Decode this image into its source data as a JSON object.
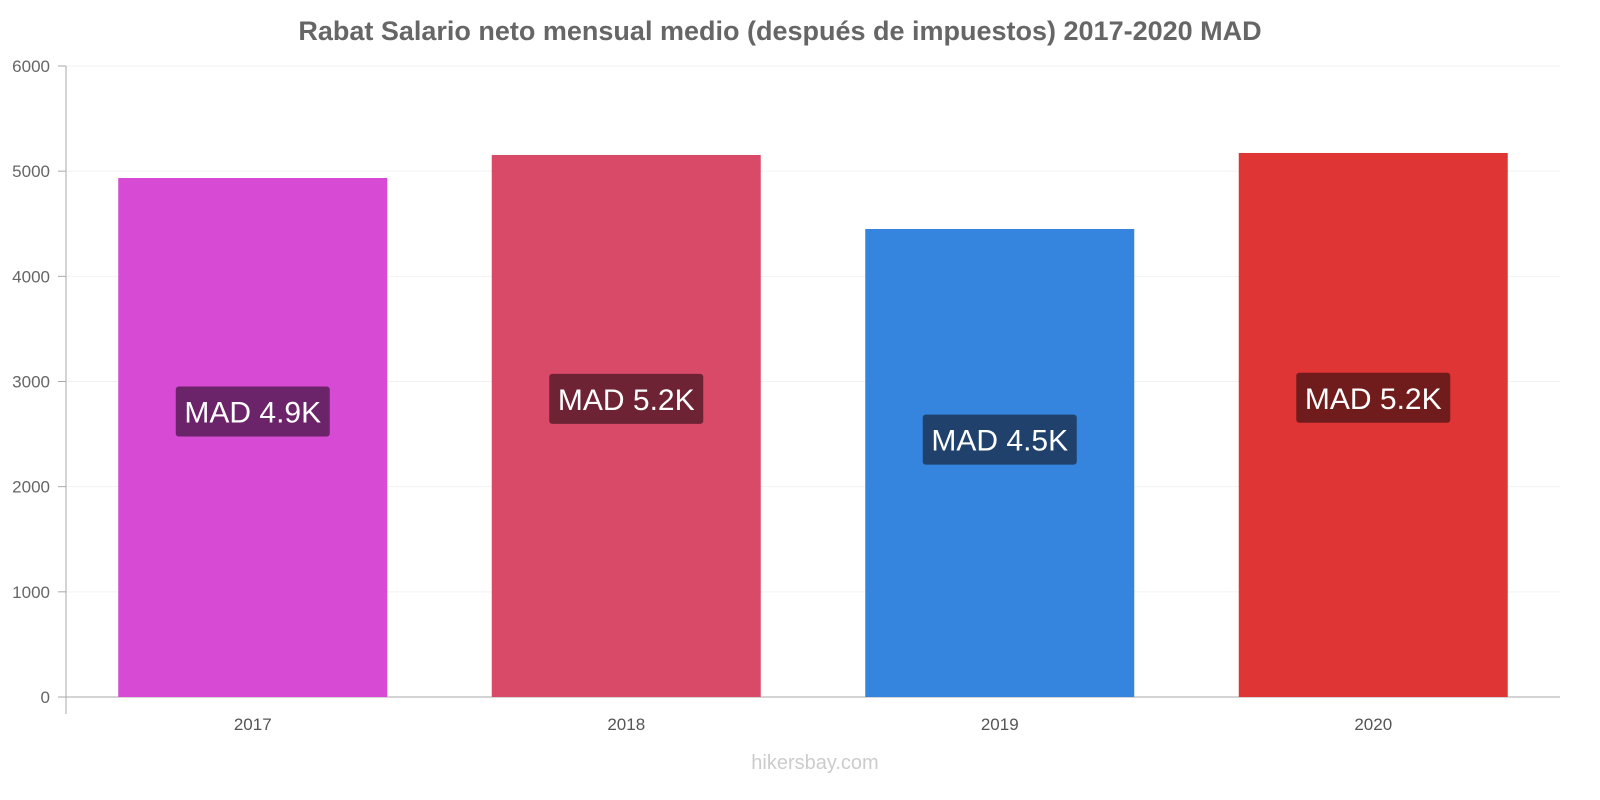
{
  "chart_data": {
    "type": "bar",
    "title": "Rabat Salario neto mensual medio (después de impuestos) 2017-2020 MAD",
    "categories": [
      "2017",
      "2018",
      "2019",
      "2020"
    ],
    "values": [
      4935,
      5154,
      4450,
      5173
    ],
    "data_labels": [
      "MAD 4.9K",
      "MAD 5.2K",
      "MAD 4.5K",
      "MAD 5.2K"
    ],
    "colors": [
      "#d64ad4",
      "#d84a68",
      "#3584de",
      "#e03535"
    ],
    "label_colors": [
      "#6b2369",
      "#6e2335",
      "#1f416b",
      "#701c1c"
    ],
    "xlabel": "",
    "ylabel": "",
    "ylim": [
      0,
      6000
    ],
    "yticks": [
      "0",
      "1000",
      "2000",
      "3000",
      "4000",
      "5000",
      "6000"
    ],
    "grid": true,
    "legend": "none"
  },
  "watermark": "hikersbay.com"
}
